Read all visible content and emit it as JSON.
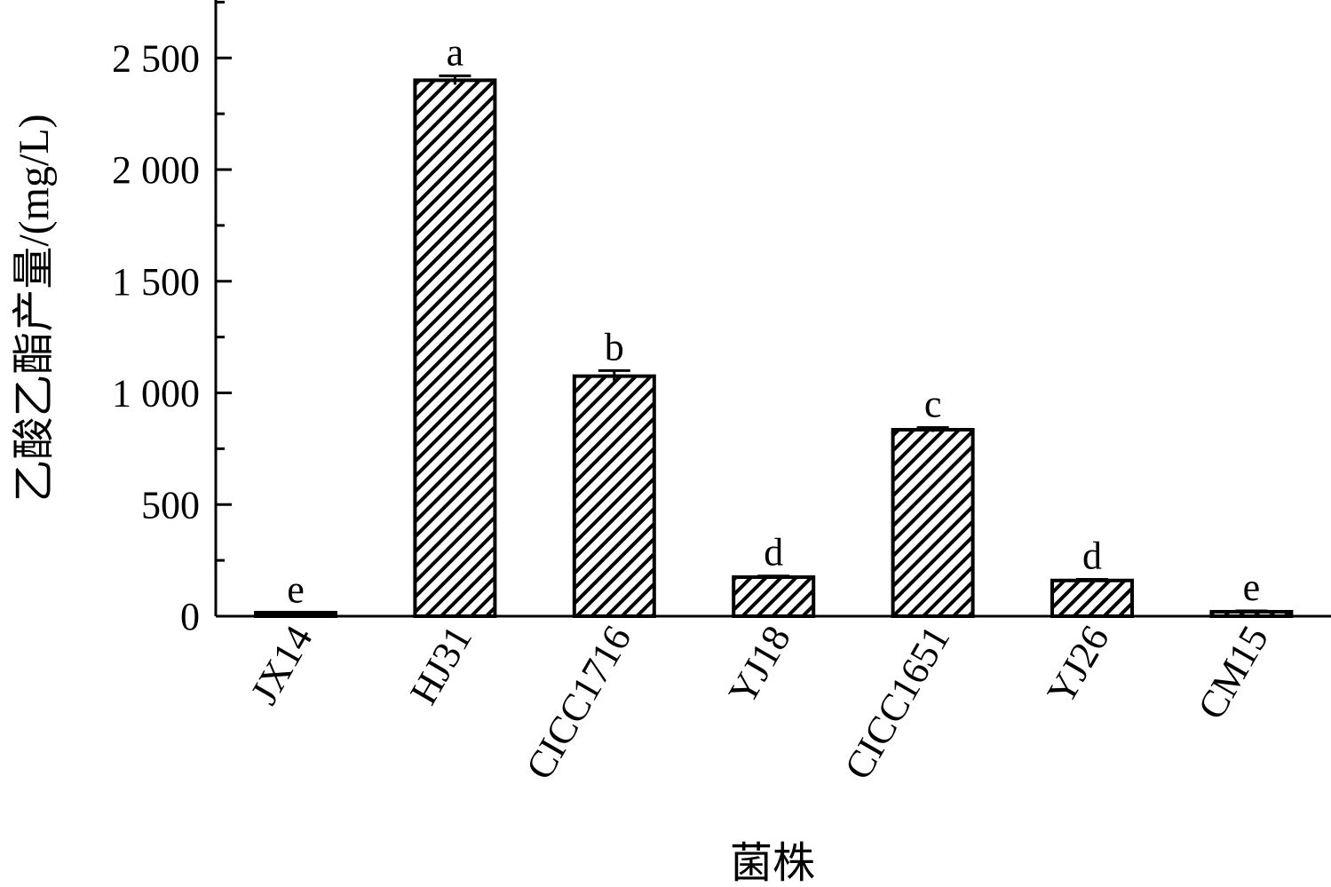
{
  "chart_data": {
    "type": "bar",
    "title": "",
    "xlabel": "菌株",
    "ylabel": "乙酸乙酯产量/(mg/L)",
    "categories": [
      "JX14",
      "HJ31",
      "CICC1716",
      "YJ18",
      "CICC1651",
      "YJ26",
      "CM15"
    ],
    "values": [
      10,
      2400,
      1075,
      175,
      835,
      160,
      20
    ],
    "errors": [
      4,
      20,
      25,
      5,
      10,
      5,
      4
    ],
    "significance_labels": [
      "e",
      "a",
      "b",
      "d",
      "c",
      "d",
      "e"
    ],
    "ylim": [
      0,
      2750
    ],
    "yticks": [
      0,
      500,
      1000,
      1500,
      2000,
      2500
    ],
    "ytick_labels": [
      "0",
      "500",
      "1 000",
      "1 500",
      "2 000",
      "2 500"
    ],
    "grid": false,
    "legend": "none",
    "bar_fill": "hatched",
    "bar_color": "#000000",
    "background_color": "#ffffff"
  }
}
